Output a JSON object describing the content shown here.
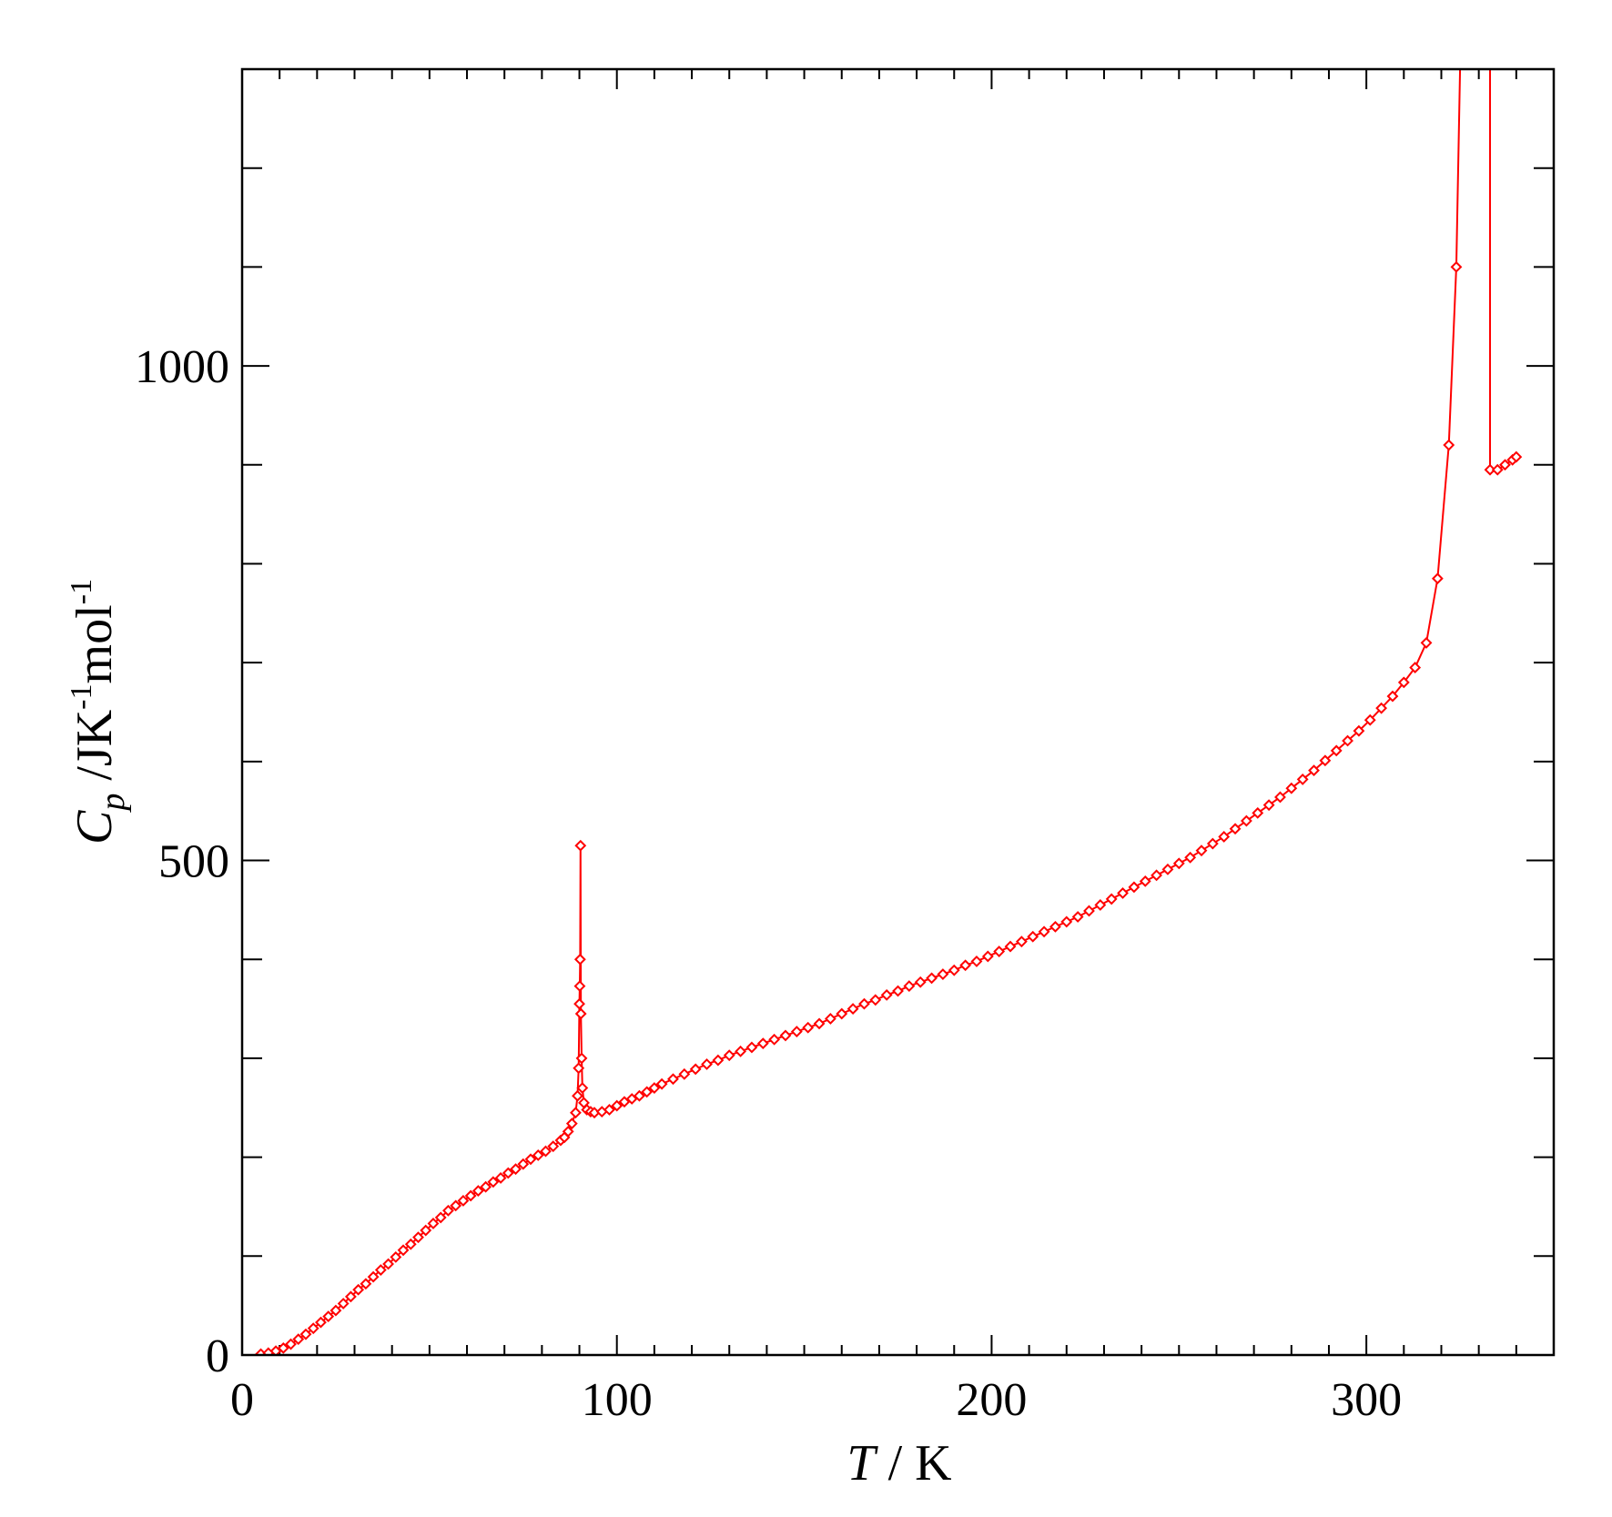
{
  "chart_data": {
    "type": "line",
    "title": "",
    "xlabel": {
      "symbol": "T",
      "unit": " / K"
    },
    "ylabel": {
      "symbol": "C",
      "sub": "p",
      "unit_a": " /JK",
      "exp_a": "-1",
      "unit_b": "mol",
      "exp_b": "-1"
    },
    "xlim": [
      0,
      350
    ],
    "ylim": [
      0,
      1300
    ],
    "xticks_major": [
      0,
      100,
      200,
      300
    ],
    "xtick_labels": [
      "0",
      "100",
      "200",
      "300"
    ],
    "xticks_minor_step": 10,
    "yticks_major": [
      0,
      500,
      1000
    ],
    "ytick_labels": [
      "0",
      "500",
      "1000"
    ],
    "yticks_minor_step": 100,
    "grid": false,
    "legend": "none",
    "colors": {
      "series": "#ff0000",
      "axes": "#000000",
      "background": "#ffffff"
    },
    "series": [
      {
        "marker": "diamond-open",
        "points": [
          [
            5,
            1
          ],
          [
            7,
            2
          ],
          [
            9,
            4
          ],
          [
            11,
            7
          ],
          [
            13,
            11
          ],
          [
            15,
            16
          ],
          [
            17,
            21
          ],
          [
            19,
            27
          ],
          [
            21,
            33
          ],
          [
            23,
            39
          ],
          [
            25,
            45
          ],
          [
            27,
            52
          ],
          [
            29,
            59
          ],
          [
            31,
            66
          ],
          [
            33,
            72
          ],
          [
            35,
            79
          ],
          [
            37,
            86
          ],
          [
            39,
            92
          ],
          [
            41,
            99
          ],
          [
            43,
            106
          ],
          [
            45,
            112
          ],
          [
            47,
            119
          ],
          [
            49,
            126
          ],
          [
            51,
            133
          ],
          [
            53,
            139
          ],
          [
            55,
            146
          ],
          [
            57,
            151
          ],
          [
            59,
            156
          ],
          [
            61,
            161
          ],
          [
            63,
            166
          ],
          [
            65,
            170
          ],
          [
            67,
            175
          ],
          [
            69,
            179
          ],
          [
            71,
            184
          ],
          [
            73,
            188
          ],
          [
            75,
            193
          ],
          [
            77,
            198
          ],
          [
            79,
            202
          ],
          [
            81,
            206
          ],
          [
            83,
            211
          ],
          [
            85,
            217
          ],
          [
            86,
            220
          ],
          [
            87,
            226
          ],
          [
            88,
            234
          ],
          [
            89,
            245
          ],
          [
            89.5,
            262
          ],
          [
            89.8,
            290
          ],
          [
            90.0,
            355
          ],
          [
            90.1,
            373
          ],
          [
            90.2,
            400
          ],
          [
            90.3,
            515
          ],
          [
            90.4,
            345
          ],
          [
            90.6,
            300
          ],
          [
            90.8,
            270
          ],
          [
            91.2,
            255
          ],
          [
            92,
            248
          ],
          [
            93,
            246
          ],
          [
            94,
            245
          ],
          [
            96,
            246
          ],
          [
            98,
            248
          ],
          [
            100,
            252
          ],
          [
            102,
            256
          ],
          [
            104,
            259
          ],
          [
            106,
            262
          ],
          [
            108,
            266
          ],
          [
            110,
            270
          ],
          [
            112,
            274
          ],
          [
            115,
            279
          ],
          [
            118,
            284
          ],
          [
            121,
            289
          ],
          [
            124,
            294
          ],
          [
            127,
            298
          ],
          [
            130,
            303
          ],
          [
            133,
            307
          ],
          [
            136,
            311
          ],
          [
            139,
            315
          ],
          [
            142,
            319
          ],
          [
            145,
            323
          ],
          [
            148,
            327
          ],
          [
            151,
            331
          ],
          [
            154,
            335
          ],
          [
            157,
            340
          ],
          [
            160,
            345
          ],
          [
            163,
            350
          ],
          [
            166,
            355
          ],
          [
            169,
            359
          ],
          [
            172,
            364
          ],
          [
            175,
            368
          ],
          [
            178,
            373
          ],
          [
            181,
            377
          ],
          [
            184,
            381
          ],
          [
            187,
            385
          ],
          [
            190,
            389
          ],
          [
            193,
            394
          ],
          [
            196,
            398
          ],
          [
            199,
            403
          ],
          [
            202,
            408
          ],
          [
            205,
            413
          ],
          [
            208,
            418
          ],
          [
            211,
            423
          ],
          [
            214,
            428
          ],
          [
            217,
            433
          ],
          [
            220,
            438
          ],
          [
            223,
            443
          ],
          [
            226,
            449
          ],
          [
            229,
            455
          ],
          [
            232,
            461
          ],
          [
            235,
            467
          ],
          [
            238,
            473
          ],
          [
            241,
            479
          ],
          [
            244,
            485
          ],
          [
            247,
            491
          ],
          [
            250,
            497
          ],
          [
            253,
            503
          ],
          [
            256,
            510
          ],
          [
            259,
            517
          ],
          [
            262,
            524
          ],
          [
            265,
            532
          ],
          [
            268,
            540
          ],
          [
            271,
            548
          ],
          [
            274,
            556
          ],
          [
            277,
            564
          ],
          [
            280,
            573
          ],
          [
            283,
            582
          ],
          [
            286,
            591
          ],
          [
            289,
            601
          ],
          [
            292,
            611
          ],
          [
            295,
            621
          ],
          [
            298,
            631
          ],
          [
            301,
            642
          ],
          [
            304,
            654
          ],
          [
            307,
            666
          ],
          [
            310,
            680
          ],
          [
            313,
            695
          ],
          [
            316,
            720
          ],
          [
            319,
            785
          ],
          [
            322,
            920
          ],
          [
            324,
            1100
          ],
          [
            325,
            1300
          ]
        ]
      },
      {
        "marker": "diamond-open",
        "points": [
          [
            333,
            1300
          ],
          [
            333,
            895
          ],
          [
            335,
            895
          ],
          [
            337,
            900
          ],
          [
            339,
            905
          ],
          [
            340,
            908
          ]
        ]
      }
    ]
  }
}
